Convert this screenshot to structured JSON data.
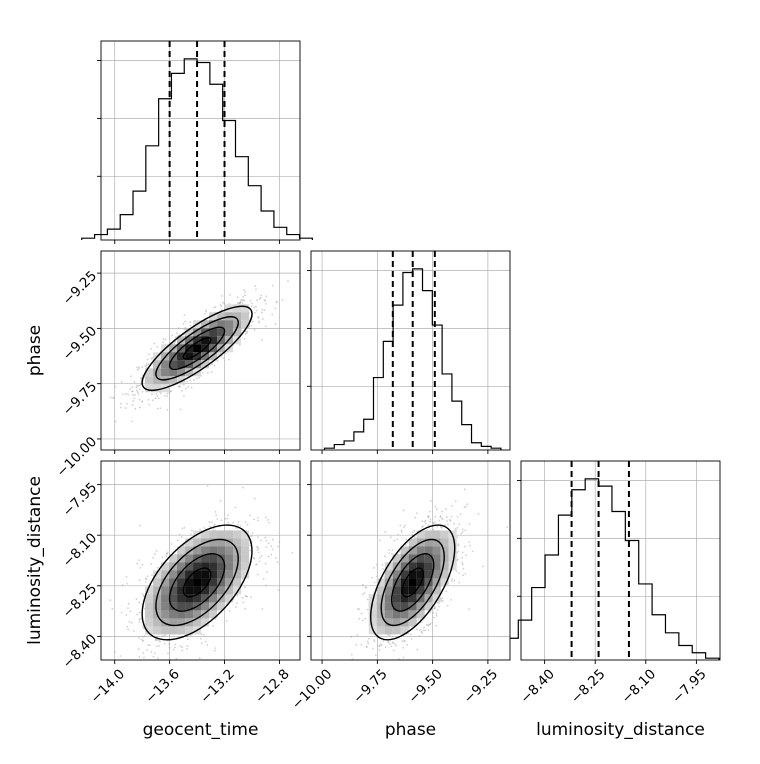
{
  "chart_data": {
    "type": "corner",
    "parameters": [
      "geocent_time",
      "phase",
      "luminosity_distance"
    ],
    "axis_labels": {
      "geocent_time": "geocent_time",
      "phase": "phase",
      "luminosity_distance": "luminosity_distance"
    },
    "ranges": {
      "geocent_time": [
        -14.1,
        -12.65
      ],
      "phase": [
        -10.05,
        -9.15
      ],
      "luminosity_distance": [
        -8.47,
        -7.88
      ]
    },
    "ticks": {
      "geocent_time": {
        "values": [
          -14.0,
          -13.6,
          -13.2,
          -12.8
        ],
        "labels": [
          "−14.0",
          "−13.6",
          "−13.2",
          "−12.8"
        ]
      },
      "phase": {
        "values": [
          -10.0,
          -9.75,
          -9.5,
          -9.25
        ],
        "labels": [
          "−10.00",
          "−9.75",
          "−9.50",
          "−9.25"
        ]
      },
      "luminosity_distance": {
        "values": [
          -8.4,
          -8.25,
          -8.1,
          -7.95
        ],
        "labels": [
          "−8.40",
          "−8.25",
          "−8.10",
          "−7.95"
        ]
      }
    },
    "quantile_lines": {
      "geocent_time": [
        -13.6,
        -13.4,
        -13.2
      ],
      "phase": [
        -9.68,
        -9.59,
        -9.49
      ],
      "luminosity_distance": [
        -8.32,
        -8.24,
        -8.15
      ]
    },
    "histograms": {
      "geocent_time": [
        0.01,
        0.03,
        0.06,
        0.14,
        0.27,
        0.52,
        0.78,
        0.92,
        1.0,
        0.98,
        0.86,
        0.66,
        0.46,
        0.3,
        0.16,
        0.07,
        0.03,
        0.01
      ],
      "phase": [
        0.01,
        0.03,
        0.05,
        0.1,
        0.17,
        0.4,
        0.6,
        0.8,
        0.98,
        1.0,
        0.88,
        0.69,
        0.42,
        0.27,
        0.14,
        0.04,
        0.02,
        0.01
      ],
      "luminosity_distance": [
        0.01,
        0.05,
        0.12,
        0.22,
        0.4,
        0.58,
        0.8,
        0.94,
        1.0,
        0.96,
        0.82,
        0.66,
        0.42,
        0.25,
        0.15,
        0.08,
        0.04,
        0.01
      ]
    },
    "correlations": {
      "phase|geocent_time": 0.82,
      "luminosity_distance|geocent_time": 0.55,
      "luminosity_distance|phase": 0.6
    },
    "grid": true,
    "colors": {
      "line": "#000000",
      "scatter": "#9a9a9a",
      "grid": "#b0b0b0"
    }
  }
}
